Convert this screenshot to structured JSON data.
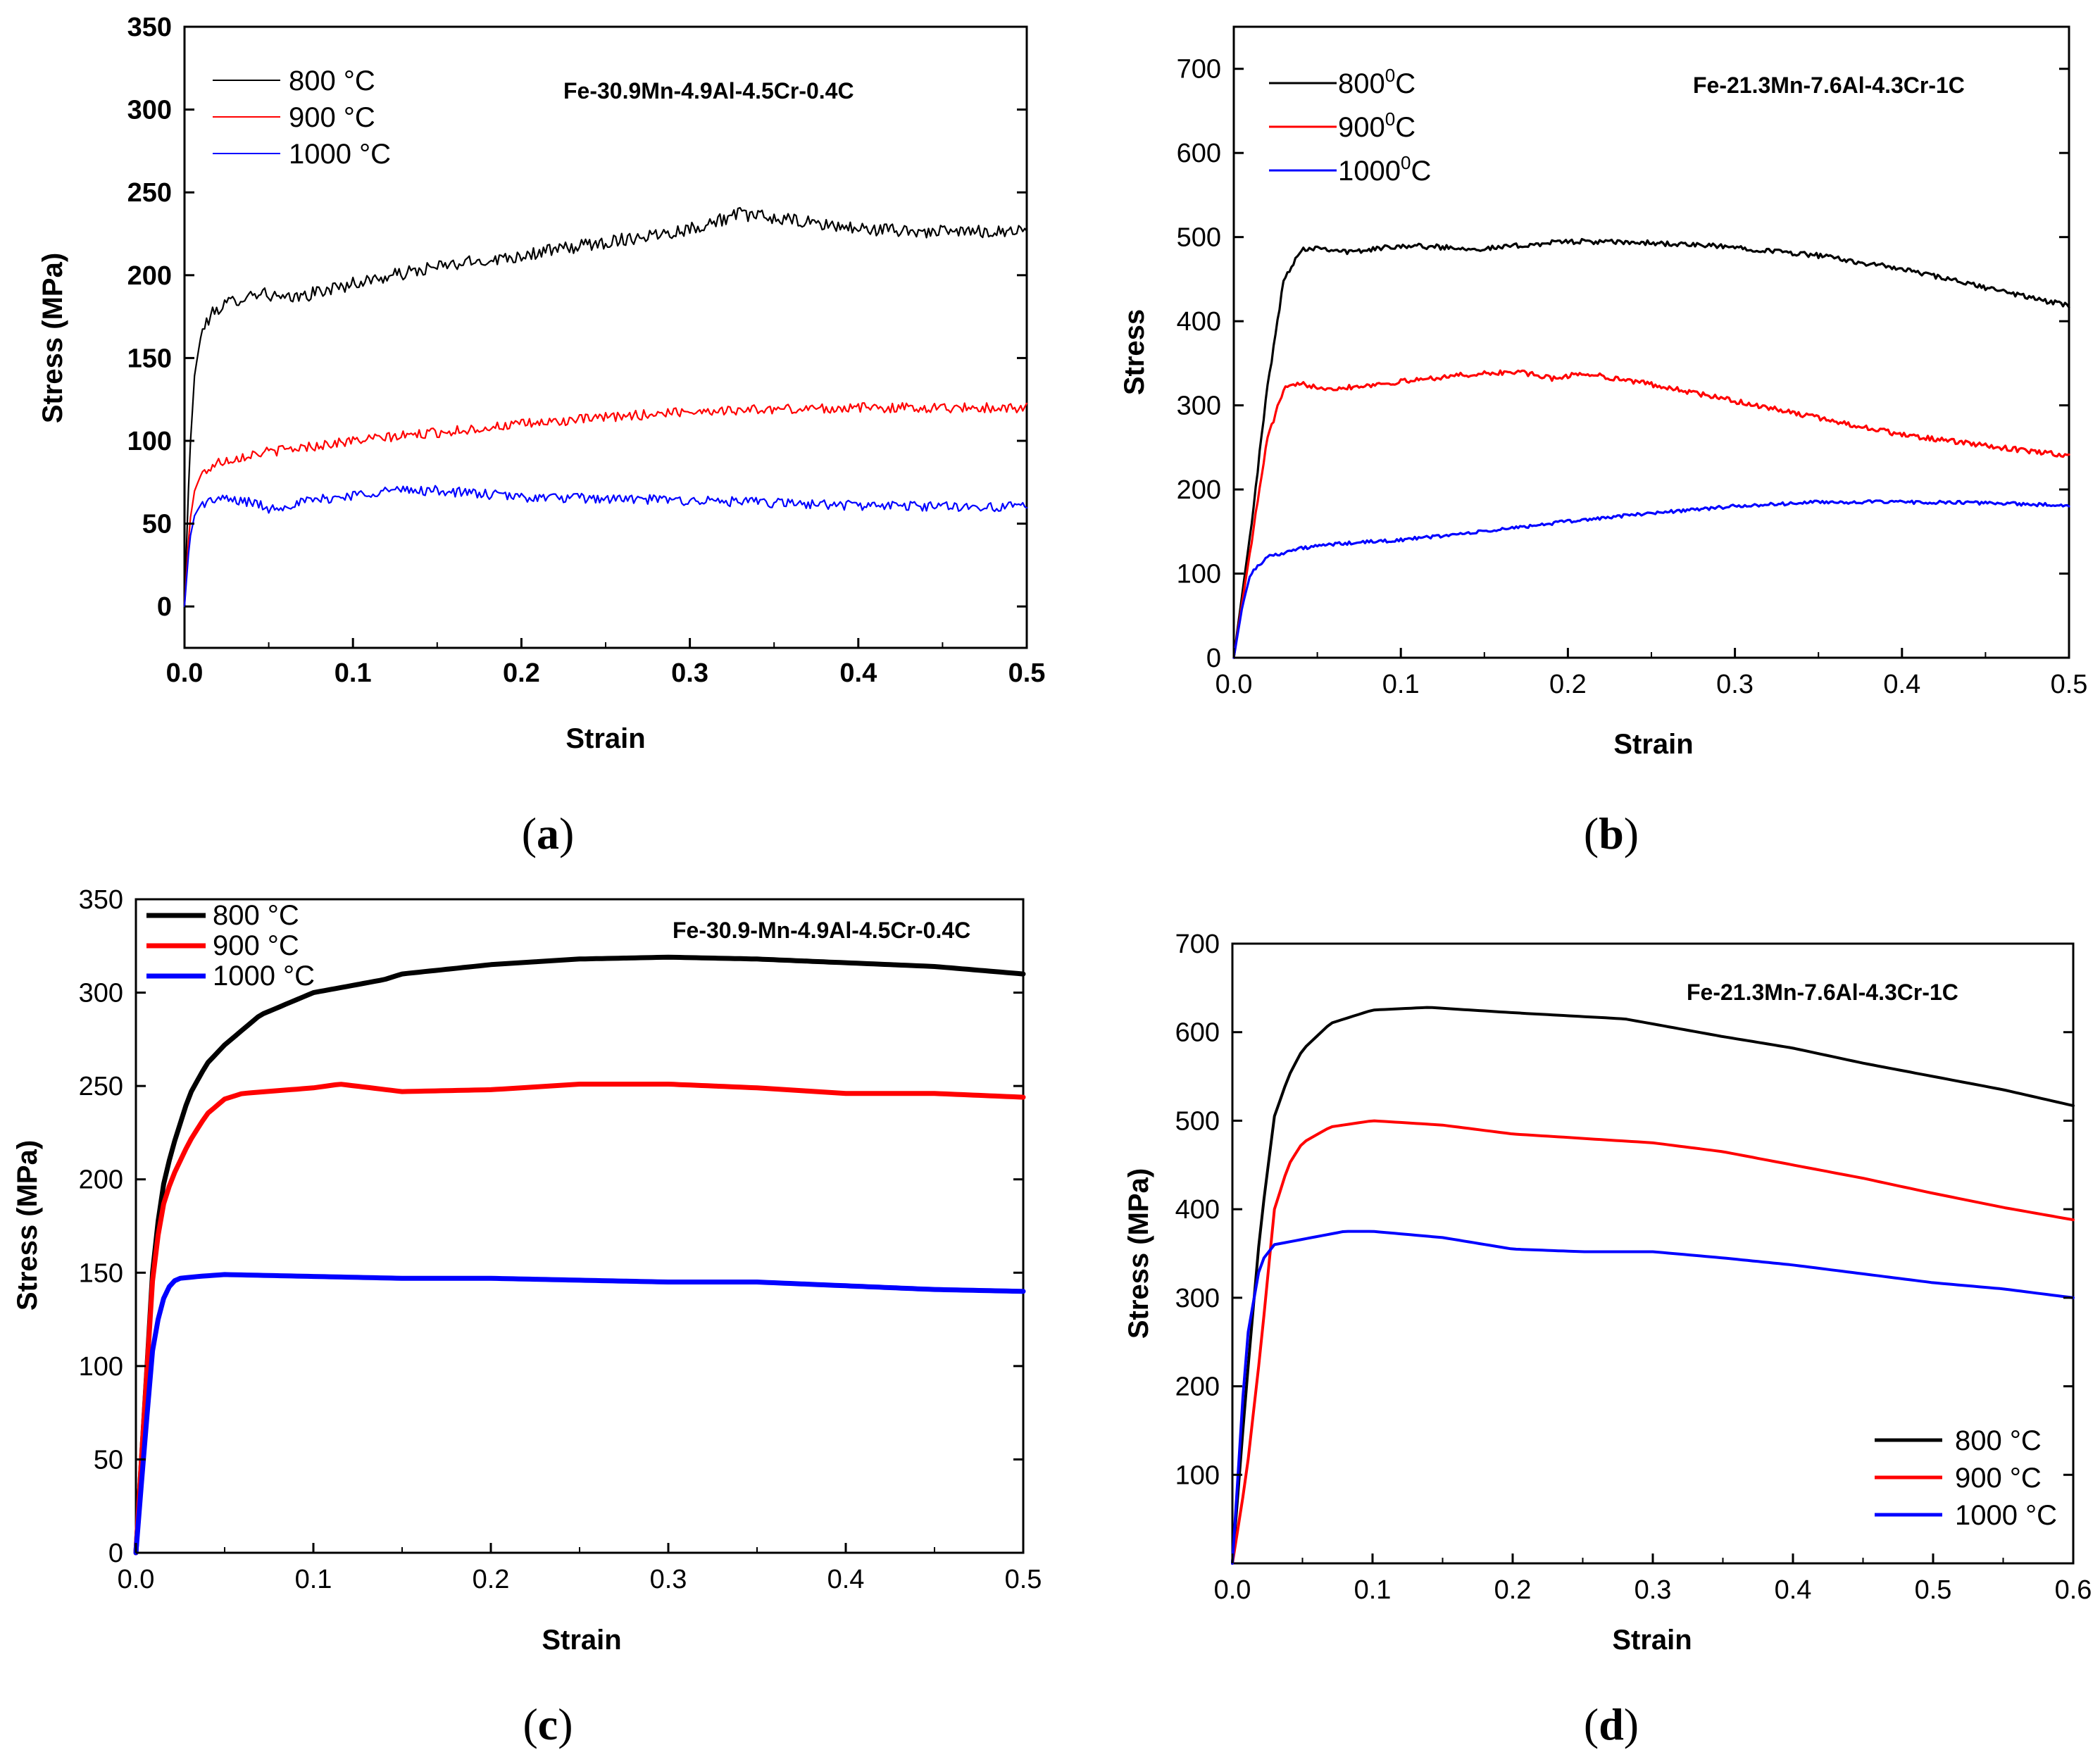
{
  "chart_data": [
    {
      "id": "a",
      "caption": "a",
      "type": "line",
      "title": "Fe-30.9Mn-4.9Al-4.5Cr-0.4C",
      "xlabel": "Strain",
      "ylabel": "Stress (MPa)",
      "xlim": [
        0,
        0.5
      ],
      "ylim": [
        -25,
        350
      ],
      "xticks": [
        0.0,
        0.1,
        0.2,
        0.3,
        0.4,
        0.5
      ],
      "xtick_labels": [
        "0.0",
        "0.1",
        "0.2",
        "0.3",
        "0.4",
        "0.5"
      ],
      "yticks": [
        0,
        50,
        100,
        150,
        200,
        250,
        300,
        350
      ],
      "ytick_labels": [
        "0",
        "50",
        "100",
        "150",
        "200",
        "250",
        "300",
        "350"
      ],
      "legend_position": "top-left",
      "series": [
        {
          "name": "800 °C",
          "color": "#000000",
          "noise": 4,
          "x": [
            0,
            0.003,
            0.006,
            0.01,
            0.015,
            0.02,
            0.03,
            0.045,
            0.06,
            0.1,
            0.15,
            0.2,
            0.25,
            0.3,
            0.33,
            0.36,
            0.4,
            0.45,
            0.5
          ],
          "y": [
            0,
            90,
            140,
            165,
            175,
            180,
            185,
            190,
            185,
            195,
            205,
            212,
            220,
            228,
            237,
            233,
            228,
            226,
            227
          ]
        },
        {
          "name": "900 °C",
          "color": "#ff0000",
          "noise": 3,
          "x": [
            0,
            0.003,
            0.006,
            0.01,
            0.02,
            0.04,
            0.1,
            0.15,
            0.2,
            0.25,
            0.3,
            0.35,
            0.4,
            0.45,
            0.5
          ],
          "y": [
            0,
            50,
            70,
            80,
            87,
            92,
            100,
            105,
            110,
            114,
            118,
            119,
            120,
            120,
            120
          ]
        },
        {
          "name": "1000 °C",
          "color": "#0000ff",
          "noise": 3,
          "x": [
            0,
            0.003,
            0.006,
            0.01,
            0.02,
            0.04,
            0.05,
            0.07,
            0.12,
            0.15,
            0.2,
            0.3,
            0.4,
            0.5
          ],
          "y": [
            0,
            40,
            55,
            62,
            65,
            63,
            59,
            63,
            70,
            70,
            66,
            64,
            61,
            60
          ]
        }
      ]
    },
    {
      "id": "b",
      "caption": "b",
      "type": "line",
      "title": "Fe-21.3Mn-7.6Al-4.3Cr-1C",
      "xlabel": "Strain",
      "ylabel": "Stress",
      "xlim": [
        0,
        0.5
      ],
      "ylim": [
        0,
        750
      ],
      "xticks": [
        0.0,
        0.1,
        0.2,
        0.3,
        0.4,
        0.5
      ],
      "xtick_labels": [
        "0.0",
        "0.1",
        "0.2",
        "0.3",
        "0.4",
        "0.5"
      ],
      "yticks": [
        0,
        100,
        200,
        300,
        400,
        500,
        600,
        700
      ],
      "ytick_labels": [
        "0",
        "100",
        "200",
        "300",
        "400",
        "500",
        "600",
        "700"
      ],
      "legend_position": "top-left",
      "legend_superscript": "0",
      "series": [
        {
          "name": "800",
          "unit": "C",
          "color": "#000000",
          "noise": 3,
          "x": [
            0,
            0.01,
            0.02,
            0.03,
            0.04,
            0.05,
            0.07,
            0.1,
            0.15,
            0.2,
            0.25,
            0.3,
            0.35,
            0.4,
            0.45,
            0.5
          ],
          "y": [
            0,
            150,
            320,
            450,
            485,
            488,
            482,
            490,
            486,
            495,
            493,
            488,
            478,
            462,
            440,
            418
          ]
        },
        {
          "name": "900",
          "unit": "C",
          "color": "#ff0000",
          "noise": 3,
          "x": [
            0,
            0.01,
            0.02,
            0.03,
            0.04,
            0.06,
            0.1,
            0.13,
            0.17,
            0.19,
            0.21,
            0.25,
            0.3,
            0.35,
            0.4,
            0.45,
            0.5
          ],
          "y": [
            0,
            130,
            260,
            320,
            325,
            320,
            328,
            335,
            340,
            332,
            338,
            325,
            305,
            285,
            265,
            252,
            240
          ]
        },
        {
          "name": "1000",
          "unit": "C",
          "color": "#0000ff",
          "noise": 2,
          "x": [
            0,
            0.005,
            0.01,
            0.02,
            0.04,
            0.06,
            0.1,
            0.15,
            0.2,
            0.25,
            0.3,
            0.35,
            0.4,
            0.45,
            0.5
          ],
          "y": [
            0,
            60,
            100,
            120,
            130,
            135,
            140,
            150,
            162,
            172,
            180,
            185,
            185,
            184,
            181
          ]
        }
      ]
    },
    {
      "id": "c",
      "caption": "c",
      "type": "line",
      "title": "Fe-30.9-Mn-4.9Al-4.5Cr-0.4C",
      "xlabel": "Strain",
      "ylabel": "Stress (MPa)",
      "xlim": [
        0,
        0.5
      ],
      "ylim": [
        0,
        350
      ],
      "xticks": [
        0.0,
        0.1,
        0.2,
        0.3,
        0.4,
        0.5
      ],
      "xtick_labels": [
        "0.0",
        "0.1",
        "0.2",
        "0.3",
        "0.4",
        "0.5"
      ],
      "yticks": [
        0,
        50,
        100,
        150,
        200,
        250,
        300,
        350
      ],
      "ytick_labels": [
        "0",
        "50",
        "100",
        "150",
        "200",
        "250",
        "300",
        "350"
      ],
      "legend_position": "top-left",
      "series": [
        {
          "name": "800 °C",
          "color": "#000000",
          "noise": 0,
          "x": [
            0,
            0.005,
            0.01,
            0.015,
            0.02,
            0.03,
            0.04,
            0.05,
            0.07,
            0.1,
            0.14,
            0.15,
            0.2,
            0.25,
            0.3,
            0.35,
            0.4,
            0.45,
            0.5
          ],
          "y": [
            0,
            80,
            160,
            195,
            215,
            245,
            262,
            272,
            288,
            300,
            307,
            310,
            315,
            318,
            319,
            318,
            316,
            314,
            310
          ]
        },
        {
          "name": "900 °C",
          "color": "#ff0000",
          "noise": 0,
          "x": [
            0,
            0.005,
            0.01,
            0.015,
            0.02,
            0.03,
            0.04,
            0.05,
            0.06,
            0.1,
            0.115,
            0.15,
            0.2,
            0.25,
            0.3,
            0.35,
            0.4,
            0.45,
            0.5
          ],
          "y": [
            0,
            80,
            155,
            185,
            200,
            220,
            235,
            243,
            246,
            249,
            251,
            247,
            248,
            251,
            251,
            249,
            246,
            246,
            244
          ]
        },
        {
          "name": "1000 °C",
          "color": "#0000ff",
          "noise": 0,
          "x": [
            0,
            0.005,
            0.01,
            0.015,
            0.02,
            0.025,
            0.035,
            0.05,
            0.1,
            0.15,
            0.2,
            0.25,
            0.3,
            0.35,
            0.4,
            0.45,
            0.5
          ],
          "y": [
            0,
            60,
            115,
            135,
            145,
            147,
            148,
            149,
            148,
            147,
            147,
            146,
            145,
            145,
            143,
            141,
            140
          ]
        }
      ]
    },
    {
      "id": "d",
      "caption": "d",
      "type": "line",
      "title": "Fe-21.3Mn-7.6Al-4.3Cr-1C",
      "xlabel": "Strain",
      "ylabel": "Stress (MPa)",
      "xlim": [
        0,
        0.6
      ],
      "ylim": [
        0,
        700
      ],
      "xticks": [
        0.0,
        0.1,
        0.2,
        0.3,
        0.4,
        0.5,
        0.6
      ],
      "xtick_labels": [
        "0.0",
        "0.1",
        "0.2",
        "0.3",
        "0.4",
        "0.5",
        "0.6"
      ],
      "yticks": [
        100,
        200,
        300,
        400,
        500,
        600,
        700
      ],
      "ytick_labels": [
        "100",
        "200",
        "300",
        "400",
        "500",
        "600",
        "700"
      ],
      "legend_position": "bottom-right",
      "series": [
        {
          "name": "800 °C",
          "color": "#000000",
          "noise": 0,
          "x": [
            0,
            0.01,
            0.02,
            0.03,
            0.04,
            0.05,
            0.07,
            0.1,
            0.14,
            0.2,
            0.28,
            0.35,
            0.4,
            0.45,
            0.5,
            0.55,
            0.6
          ],
          "y": [
            0,
            200,
            380,
            505,
            550,
            580,
            610,
            625,
            628,
            622,
            615,
            595,
            582,
            565,
            550,
            535,
            517
          ]
        },
        {
          "name": "900 °C",
          "color": "#ff0000",
          "noise": 0,
          "x": [
            0,
            0.01,
            0.02,
            0.03,
            0.04,
            0.05,
            0.07,
            0.1,
            0.15,
            0.2,
            0.25,
            0.3,
            0.35,
            0.4,
            0.45,
            0.5,
            0.55,
            0.6
          ],
          "y": [
            0,
            100,
            240,
            400,
            450,
            475,
            493,
            500,
            495,
            485,
            480,
            475,
            465,
            450,
            435,
            418,
            402,
            388
          ]
        },
        {
          "name": "1000 °C",
          "color": "#0000ff",
          "noise": 0,
          "x": [
            0,
            0.01,
            0.02,
            0.03,
            0.05,
            0.08,
            0.1,
            0.15,
            0.2,
            0.25,
            0.3,
            0.35,
            0.4,
            0.45,
            0.5,
            0.55,
            0.6
          ],
          "y": [
            0,
            250,
            340,
            360,
            366,
            375,
            375,
            368,
            355,
            352,
            352,
            345,
            337,
            327,
            317,
            310,
            300
          ]
        }
      ]
    }
  ]
}
